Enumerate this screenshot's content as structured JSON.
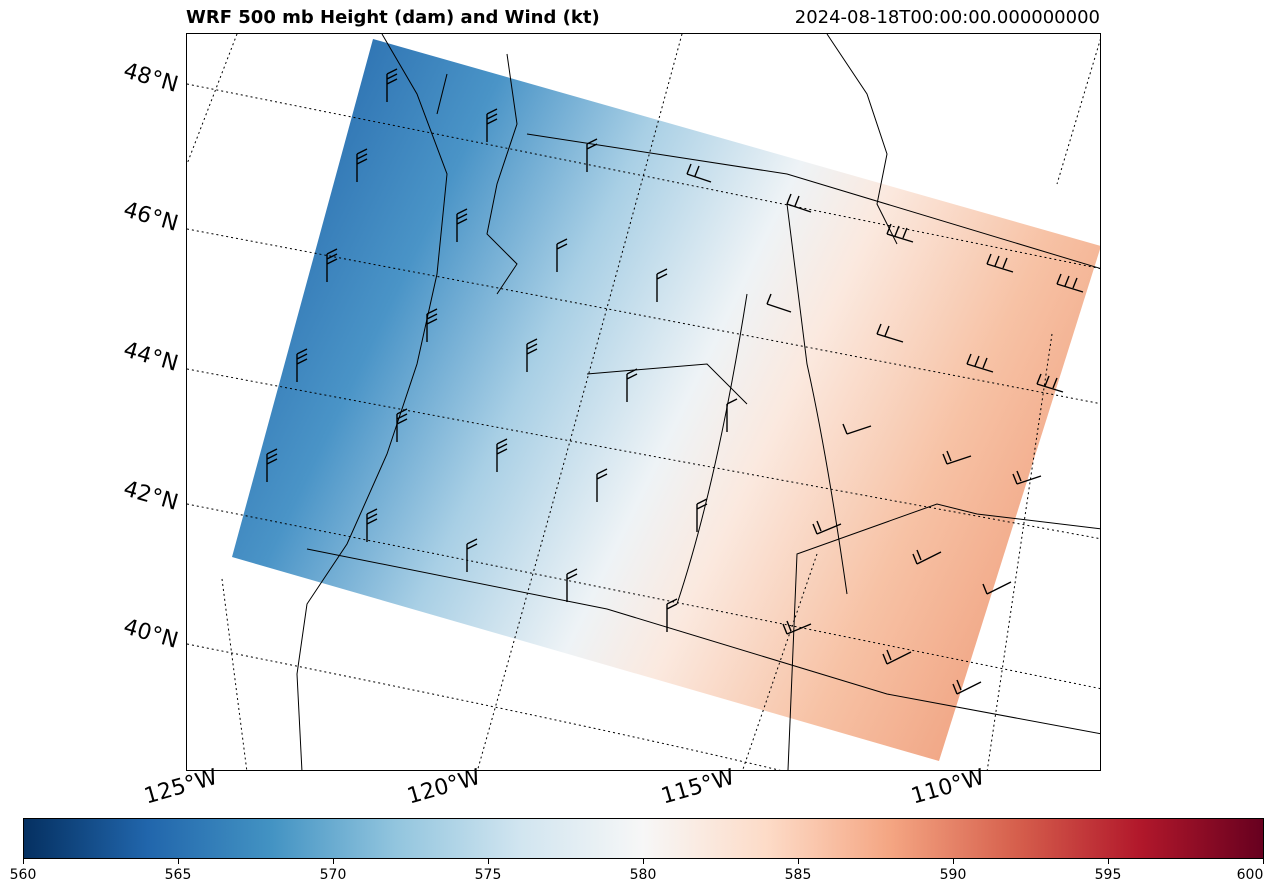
{
  "header": {
    "title": "WRF 500 mb Height (dam) and Wind (kt)",
    "valid_time": "2024-08-18T00:00:00.000000000"
  },
  "map": {
    "latitude_labels": [
      "48°N",
      "46°N",
      "44°N",
      "42°N",
      "40°N"
    ],
    "longitude_labels": [
      "125°W",
      "120°W",
      "115°W",
      "110°W"
    ]
  },
  "colorbar": {
    "colormap": "RdBu_r",
    "min": 560,
    "max": 600,
    "ticks": [
      "560",
      "565",
      "570",
      "575",
      "580",
      "585",
      "590",
      "595",
      "600"
    ],
    "low_color": "#053061",
    "mid_color": "#f7f7f7",
    "high_color": "#67001f"
  }
}
